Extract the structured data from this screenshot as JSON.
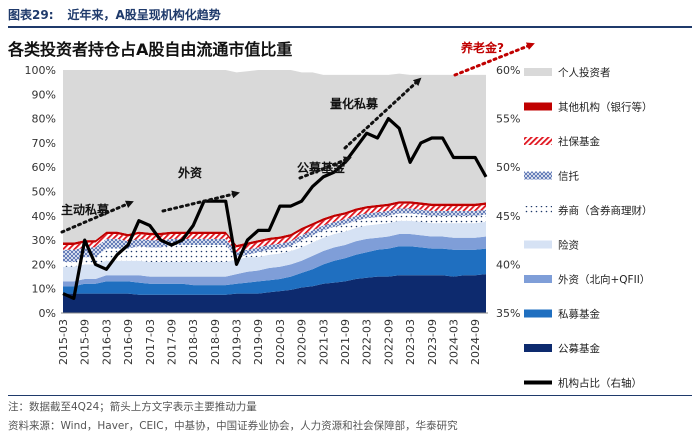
{
  "header": {
    "figure_label": "图表29:",
    "figure_caption": "近年来，A股呈现机构化趋势"
  },
  "footer": {
    "note": "注：数据截至4Q24；箭头上方文字表示主要推动力量",
    "source": "资料来源：Wind，Haver，CEIC，中基协，中国证券业协会，人力资源和社会保障部，华泰研究"
  },
  "colors": {
    "public_fund": "#0d2a6e",
    "private_fund": "#1f6fc0",
    "foreign": "#7f9ed8",
    "insurance": "#d6e2f4",
    "broker": "#ffffff",
    "trust": "#9aaed6",
    "social_security": "#e0141e",
    "other_inst": "#c00000",
    "individual": "#d9d9d9",
    "line": "#000000"
  },
  "chart_data": {
    "type": "area",
    "title": "各类投资者持仓占A股自由流通市值比重",
    "left_axis": {
      "min": 0,
      "max": 100,
      "step": 10,
      "unit": "%"
    },
    "right_axis": {
      "min": 35,
      "max": 60,
      "step": 5,
      "unit": "%"
    },
    "x_tick_labels": [
      "2015-03",
      "2015-09",
      "2016-03",
      "2016-09",
      "2017-03",
      "2017-09",
      "2018-03",
      "2018-09",
      "2019-03",
      "2019-09",
      "2020-03",
      "2020-09",
      "2021-03",
      "2021-09",
      "2022-03",
      "2022-09",
      "2023-03",
      "2023-09",
      "2024-03",
      "2024-09"
    ],
    "quarters": [
      "2015Q1",
      "2015Q2",
      "2015Q3",
      "2015Q4",
      "2016Q1",
      "2016Q2",
      "2016Q3",
      "2016Q4",
      "2017Q1",
      "2017Q2",
      "2017Q3",
      "2017Q4",
      "2018Q1",
      "2018Q2",
      "2018Q3",
      "2018Q4",
      "2019Q1",
      "2019Q2",
      "2019Q3",
      "2019Q4",
      "2020Q1",
      "2020Q2",
      "2020Q3",
      "2020Q4",
      "2021Q1",
      "2021Q2",
      "2021Q3",
      "2021Q4",
      "2022Q1",
      "2022Q2",
      "2022Q3",
      "2022Q4",
      "2023Q1",
      "2023Q2",
      "2023Q3",
      "2023Q4",
      "2024Q1",
      "2024Q2",
      "2024Q3",
      "2024Q4"
    ],
    "stack_series": [
      {
        "name": "公募基金",
        "key": "public_fund",
        "values": [
          8,
          8,
          8,
          8,
          8,
          8,
          8,
          7.5,
          7.5,
          7.5,
          7.5,
          7.5,
          7.5,
          7.5,
          7.5,
          7.5,
          8,
          8,
          8,
          8.5,
          9,
          9.5,
          10.5,
          11,
          12,
          12.5,
          13,
          14,
          14.5,
          15,
          15,
          15.5,
          15.5,
          15.5,
          15.5,
          15.5,
          15,
          15.5,
          15.5,
          16
        ]
      },
      {
        "name": "私募基金",
        "key": "private_fund",
        "values": [
          3,
          3,
          4,
          4,
          5,
          5,
          5,
          5,
          4.5,
          4.5,
          4.5,
          4.5,
          4,
          4,
          4,
          4,
          4,
          4.5,
          5,
          5,
          5,
          5.5,
          6,
          7,
          8,
          9,
          9.5,
          10,
          10.5,
          11,
          11.5,
          12,
          12,
          11.5,
          11,
          11,
          11,
          10.5,
          10.5,
          10.5
        ]
      },
      {
        "name": "外资（北向+QFII）",
        "key": "foreign",
        "values": [
          2,
          2,
          2,
          2,
          2.5,
          2.5,
          2.5,
          3,
          3,
          3,
          3,
          3,
          3.5,
          3.5,
          3.5,
          3.5,
          4,
          4.5,
          4.5,
          5,
          5,
          5,
          5,
          5.5,
          5.5,
          5.5,
          5.5,
          5.5,
          5.5,
          5,
          5,
          5,
          5,
          5,
          5,
          5,
          5,
          5,
          5,
          5
        ]
      },
      {
        "name": "险资",
        "key": "insurance",
        "values": [
          6,
          6,
          6,
          6,
          6,
          6,
          6,
          6,
          6,
          6,
          6,
          6,
          6,
          6,
          6,
          6,
          6,
          6,
          5.5,
          5.5,
          5.5,
          5.5,
          5.5,
          5.5,
          5.5,
          5.5,
          5.5,
          5.5,
          5.5,
          5.5,
          5.5,
          5.5,
          5.5,
          5.5,
          5.5,
          5.5,
          6,
          6,
          6,
          6
        ]
      },
      {
        "name": "券商（含券商理财）",
        "key": "broker",
        "values": [
          2,
          2,
          3,
          3,
          5,
          5,
          5,
          6,
          6,
          6,
          7,
          7,
          7,
          7,
          7,
          7,
          1,
          1,
          2,
          2,
          2,
          2,
          3,
          3,
          3,
          3,
          3,
          3,
          3,
          3,
          3,
          3,
          3,
          3,
          3,
          3,
          3,
          3,
          3,
          3
        ]
      },
      {
        "name": "信托",
        "key": "trust",
        "values": [
          5,
          5,
          4,
          4,
          4,
          4,
          3,
          3,
          3,
          3,
          2.5,
          2.5,
          2.5,
          2.5,
          2.5,
          2.5,
          2,
          2,
          2,
          2,
          2,
          2,
          2,
          2,
          2,
          2,
          2,
          2,
          2,
          2,
          2,
          2,
          2,
          2,
          2,
          2,
          2,
          2,
          2,
          2
        ]
      },
      {
        "name": "社保基金",
        "key": "social_security",
        "values": [
          2,
          2,
          2,
          2,
          2,
          2,
          2,
          2,
          2,
          2,
          2,
          2,
          2,
          2,
          2,
          2,
          2,
          2,
          2,
          2,
          2,
          2,
          2,
          2,
          2,
          2,
          2,
          2,
          2,
          2,
          2,
          2,
          2,
          2,
          2,
          2,
          2,
          2,
          2,
          2
        ]
      },
      {
        "name": "其他机构（银行等）",
        "key": "other_inst",
        "values": [
          1,
          1,
          1,
          1,
          1,
          1,
          1,
          1,
          1,
          1,
          1,
          1,
          1,
          1,
          1,
          1,
          1,
          1,
          1,
          1,
          1,
          1,
          1,
          1,
          1,
          1,
          1,
          1,
          1,
          1,
          1,
          1,
          1,
          1,
          1,
          1,
          1,
          1,
          1,
          1
        ]
      },
      {
        "name": "个人投资者",
        "key": "individual",
        "values": [
          71,
          71,
          70,
          70,
          66.5,
          66.5,
          67.5,
          66.5,
          67,
          67,
          66.5,
          66.5,
          66.5,
          66.5,
          66.5,
          66.5,
          71,
          70.5,
          70,
          69,
          68.5,
          67.5,
          64,
          62,
          59,
          57.5,
          56.5,
          55,
          54,
          53.5,
          53,
          52.5,
          52,
          52.5,
          53,
          53,
          53,
          53,
          53,
          52.5
        ]
      }
    ],
    "line_series": {
      "name": "机构占比（右轴）",
      "key": "line",
      "axis": "right",
      "values": [
        37,
        36.5,
        42.5,
        40,
        39.5,
        41,
        42,
        44.5,
        44,
        42.5,
        42,
        42.5,
        44,
        46.5,
        46.5,
        46.5,
        40,
        42.5,
        43.5,
        43.5,
        46,
        46,
        46.5,
        48,
        49,
        49.5,
        50.5,
        52,
        53.5,
        53,
        55,
        54,
        50.5,
        52.5,
        53,
        53,
        51,
        51,
        51,
        49
      ]
    },
    "legend": [
      "个人投资者",
      "其他机构（银行等）",
      "社保基金",
      "信托",
      "券商（含券商理财）",
      "险资",
      "外资（北向+QFII）",
      "私募基金",
      "公募基金",
      "机构占比（右轴）"
    ],
    "annotations": [
      {
        "text": "主动私募"
      },
      {
        "text": "外资"
      },
      {
        "text": "公募基金"
      },
      {
        "text": "量化私募"
      },
      {
        "text": "养老金?"
      }
    ]
  }
}
